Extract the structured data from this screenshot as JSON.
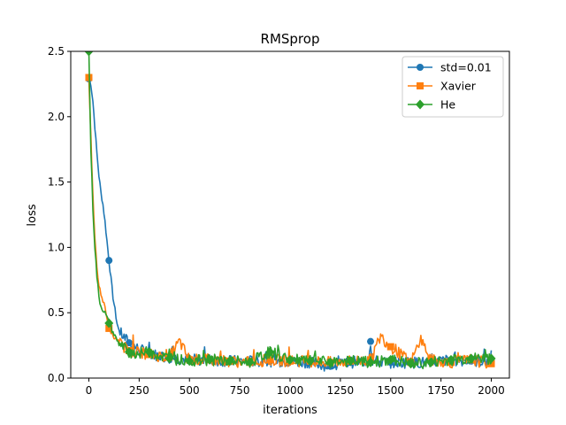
{
  "chart_data": {
    "type": "line",
    "title": "RMSprop",
    "xlabel": "iterations",
    "ylabel": "loss",
    "xlim": [
      -90,
      2090
    ],
    "ylim": [
      0.0,
      2.5
    ],
    "xticks": [
      0,
      250,
      500,
      750,
      1000,
      1250,
      1500,
      1750,
      2000
    ],
    "yticks": [
      0.0,
      0.5,
      1.0,
      1.5,
      2.0,
      2.5
    ],
    "xtick_labels": [
      "0",
      "250",
      "500",
      "750",
      "1000",
      "1250",
      "1500",
      "1750",
      "2000"
    ],
    "ytick_labels": [
      "0.0",
      "0.5",
      "1.0",
      "1.5",
      "2.0",
      "2.5"
    ],
    "grid": false,
    "legend_position": "top-right",
    "marker_every": 100,
    "series": [
      {
        "name": "std=0.01",
        "color": "#1f77b4",
        "marker": "circle",
        "points": [
          [
            0,
            2.29
          ],
          [
            10,
            2.25
          ],
          [
            20,
            2.12
          ],
          [
            30,
            1.92
          ],
          [
            40,
            1.72
          ],
          [
            50,
            1.55
          ],
          [
            60,
            1.42
          ],
          [
            70,
            1.33
          ],
          [
            80,
            1.2
          ],
          [
            90,
            1.05
          ],
          [
            100,
            0.9
          ],
          [
            110,
            0.76
          ],
          [
            120,
            0.62
          ],
          [
            130,
            0.52
          ],
          [
            140,
            0.42
          ],
          [
            150,
            0.36
          ],
          [
            170,
            0.32
          ],
          [
            200,
            0.27
          ],
          [
            250,
            0.22
          ],
          [
            300,
            0.19
          ],
          [
            350,
            0.17
          ],
          [
            400,
            0.16
          ],
          [
            500,
            0.14
          ],
          [
            600,
            0.14
          ],
          [
            700,
            0.13
          ],
          [
            800,
            0.13
          ],
          [
            900,
            0.13
          ],
          [
            1000,
            0.13
          ],
          [
            1100,
            0.12
          ],
          [
            1200,
            0.09
          ],
          [
            1300,
            0.12
          ],
          [
            1390,
            0.13
          ],
          [
            1400,
            0.28
          ],
          [
            1410,
            0.13
          ],
          [
            1500,
            0.12
          ],
          [
            1600,
            0.12
          ],
          [
            1700,
            0.12
          ],
          [
            1800,
            0.14
          ],
          [
            1900,
            0.13
          ],
          [
            2000,
            0.13
          ]
        ]
      },
      {
        "name": "Xavier",
        "color": "#ff7f0e",
        "marker": "square",
        "points": [
          [
            0,
            2.3
          ],
          [
            10,
            1.85
          ],
          [
            20,
            1.4
          ],
          [
            30,
            1.05
          ],
          [
            40,
            0.85
          ],
          [
            50,
            0.72
          ],
          [
            60,
            0.62
          ],
          [
            80,
            0.55
          ],
          [
            100,
            0.38
          ],
          [
            120,
            0.33
          ],
          [
            150,
            0.27
          ],
          [
            200,
            0.21
          ],
          [
            250,
            0.2
          ],
          [
            300,
            0.18
          ],
          [
            400,
            0.16
          ],
          [
            450,
            0.28
          ],
          [
            500,
            0.14
          ],
          [
            600,
            0.14
          ],
          [
            700,
            0.13
          ],
          [
            800,
            0.12
          ],
          [
            900,
            0.14
          ],
          [
            1000,
            0.13
          ],
          [
            1100,
            0.13
          ],
          [
            1200,
            0.12
          ],
          [
            1300,
            0.13
          ],
          [
            1400,
            0.14
          ],
          [
            1450,
            0.32
          ],
          [
            1500,
            0.24
          ],
          [
            1600,
            0.12
          ],
          [
            1650,
            0.3
          ],
          [
            1700,
            0.14
          ],
          [
            1800,
            0.12
          ],
          [
            1900,
            0.14
          ],
          [
            2000,
            0.11
          ]
        ]
      },
      {
        "name": "He",
        "color": "#2ca02c",
        "marker": "diamond",
        "points": [
          [
            0,
            2.5
          ],
          [
            10,
            1.75
          ],
          [
            20,
            1.3
          ],
          [
            30,
            1.0
          ],
          [
            40,
            0.78
          ],
          [
            50,
            0.62
          ],
          [
            60,
            0.55
          ],
          [
            80,
            0.5
          ],
          [
            100,
            0.42
          ],
          [
            120,
            0.35
          ],
          [
            150,
            0.26
          ],
          [
            200,
            0.2
          ],
          [
            250,
            0.19
          ],
          [
            300,
            0.2
          ],
          [
            400,
            0.15
          ],
          [
            500,
            0.13
          ],
          [
            600,
            0.14
          ],
          [
            700,
            0.13
          ],
          [
            800,
            0.12
          ],
          [
            900,
            0.2
          ],
          [
            1000,
            0.14
          ],
          [
            1100,
            0.13
          ],
          [
            1200,
            0.12
          ],
          [
            1300,
            0.13
          ],
          [
            1400,
            0.12
          ],
          [
            1500,
            0.14
          ],
          [
            1600,
            0.11
          ],
          [
            1700,
            0.12
          ],
          [
            1800,
            0.14
          ],
          [
            1900,
            0.15
          ],
          [
            2000,
            0.15
          ]
        ]
      }
    ]
  }
}
